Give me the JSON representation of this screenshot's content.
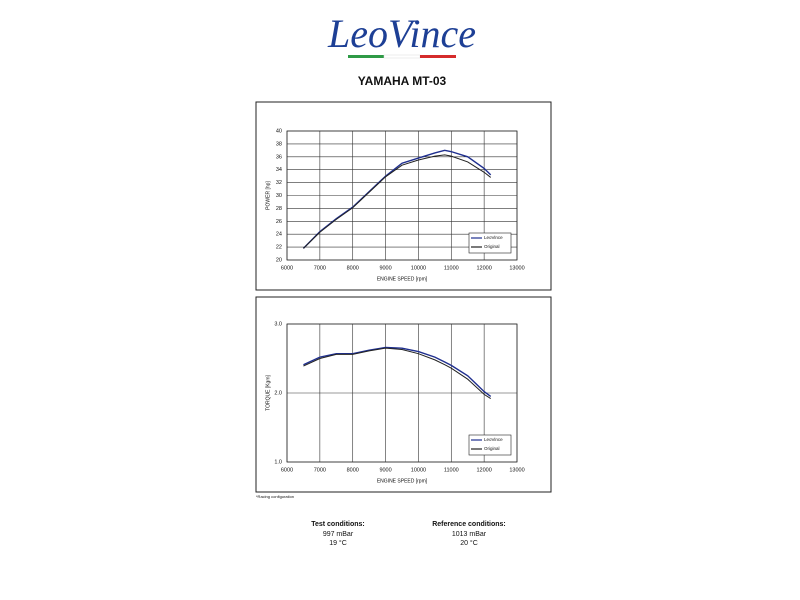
{
  "header": {
    "logo": "LeoVince",
    "title": "YAMAHA MT-03"
  },
  "chart_data": [
    {
      "type": "line",
      "ylabel": "POWER [hp]",
      "xlabel": "ENGINE SPEED [rpm]",
      "x": [
        6500,
        7000,
        7500,
        8000,
        8500,
        9000,
        9500,
        10000,
        10500,
        10800,
        11000,
        11500,
        12000,
        12200
      ],
      "series": [
        {
          "name": "LeoVince",
          "color": "#1f2f8f",
          "values": [
            21.8,
            24.4,
            26.4,
            28.2,
            30.6,
            33.0,
            35.0,
            35.8,
            36.6,
            37.0,
            36.8,
            36.0,
            34.2,
            33.2
          ]
        },
        {
          "name": "Original",
          "color": "#222222",
          "values": [
            21.8,
            24.3,
            26.3,
            28.1,
            30.5,
            32.9,
            34.7,
            35.5,
            36.1,
            36.3,
            36.1,
            35.2,
            33.6,
            32.8
          ]
        }
      ],
      "xlim": [
        6000,
        13000
      ],
      "xticks": [
        6000,
        7000,
        8000,
        9000,
        10000,
        11000,
        12000,
        13000
      ],
      "ylim": [
        20,
        40
      ],
      "yticks": [
        20,
        22,
        24,
        26,
        28,
        30,
        32,
        34,
        36,
        38,
        40
      ],
      "grid": true,
      "legend": "lower right"
    },
    {
      "type": "line",
      "ylabel": "TORQUE [Kgm]",
      "xlabel": "ENGINE SPEED [rpm]",
      "x": [
        6500,
        7000,
        7500,
        8000,
        8500,
        9000,
        9500,
        10000,
        10500,
        10800,
        11000,
        11500,
        12000,
        12200
      ],
      "series": [
        {
          "name": "LeoVince",
          "color": "#1f2f8f",
          "values": [
            2.41,
            2.52,
            2.57,
            2.57,
            2.62,
            2.66,
            2.65,
            2.6,
            2.52,
            2.45,
            2.4,
            2.25,
            2.02,
            1.95
          ]
        },
        {
          "name": "Original",
          "color": "#222222",
          "values": [
            2.39,
            2.5,
            2.56,
            2.56,
            2.61,
            2.65,
            2.63,
            2.57,
            2.48,
            2.41,
            2.36,
            2.2,
            1.98,
            1.92
          ]
        }
      ],
      "xlim": [
        6000,
        13000
      ],
      "xticks": [
        6000,
        7000,
        8000,
        9000,
        10000,
        11000,
        12000,
        13000
      ],
      "ylim": [
        1.0,
        3.0
      ],
      "yticks": [
        {
          "value": 1.0,
          "label": "1.0"
        },
        {
          "value": 2.0,
          "label": "2.0"
        },
        {
          "value": 3.0,
          "label": "3.0"
        }
      ],
      "grid": true,
      "legend": "lower right"
    }
  ],
  "footnote": "*Racing configuration",
  "conditions": [
    {
      "title": "Test conditions:",
      "lines": [
        "997 mBar",
        "19 °C"
      ]
    },
    {
      "title": "Reference conditions:",
      "lines": [
        "1013 mBar",
        "20 °C"
      ]
    }
  ]
}
